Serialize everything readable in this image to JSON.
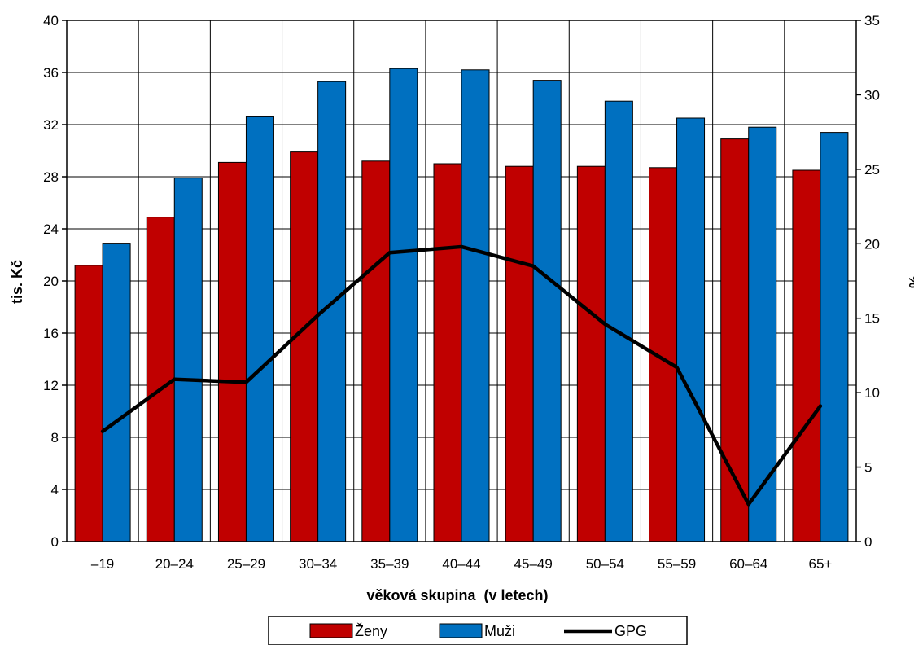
{
  "chart_data": {
    "type": "bar",
    "title": "",
    "categories": [
      "–19",
      "20–24",
      "25–29",
      "30–34",
      "35–39",
      "40–44",
      "45–49",
      "50–54",
      "55–59",
      "60–64",
      "65+"
    ],
    "series": [
      {
        "name": "Ženy",
        "type": "bar",
        "axis": "left",
        "color": "#C00000",
        "values": [
          21.2,
          24.9,
          29.1,
          29.9,
          29.2,
          29.0,
          28.8,
          28.8,
          28.7,
          30.9,
          28.5
        ]
      },
      {
        "name": "Muži",
        "type": "bar",
        "axis": "left",
        "color": "#0070C0",
        "values": [
          22.9,
          27.9,
          32.6,
          35.3,
          36.3,
          36.2,
          35.4,
          33.8,
          32.5,
          31.8,
          31.4
        ]
      },
      {
        "name": "GPG",
        "type": "line",
        "axis": "right",
        "color": "#000000",
        "values": [
          7.4,
          10.9,
          10.7,
          15.2,
          19.4,
          19.8,
          18.5,
          14.6,
          11.7,
          2.5,
          9.1
        ]
      }
    ],
    "xlabel": "věková skupina  (v letech)",
    "ylabel": "tis. Kč",
    "ylabel_right": "%",
    "ylim": [
      0,
      40
    ],
    "ylim_right": [
      0,
      35
    ],
    "yticks": [
      "0",
      "4",
      "8",
      "12",
      "16",
      "20",
      "24",
      "28",
      "32",
      "36",
      "40"
    ],
    "yticks_right": [
      "0",
      "5",
      "10",
      "15",
      "20",
      "25",
      "30",
      "35"
    ],
    "grid": true,
    "legend_position": "bottom"
  }
}
